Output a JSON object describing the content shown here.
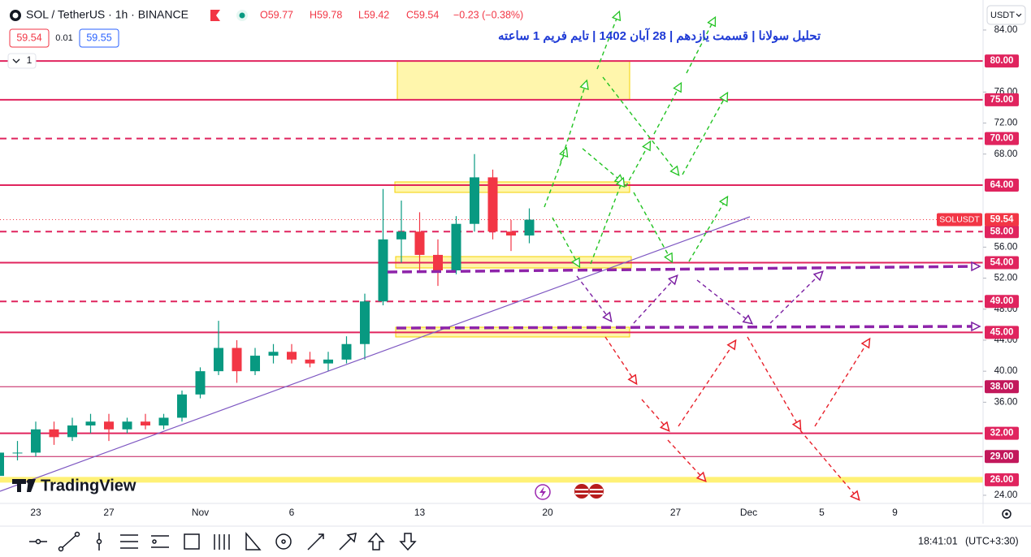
{
  "chart_data": {
    "type": "candlestick",
    "symbol": "SOL / TetherUS · 1h · BINANCE",
    "legend_values": [
      "O59.77",
      "H59.78",
      "L59.42",
      "C59.54",
      "−0.23 (−0.38%)"
    ],
    "bid": "59.54",
    "spread": "0.01",
    "ask": "59.55",
    "title": "تحلیل سولانا | قسمت یازدهم | 28 آبان 1402 | تایم فریم 1 ساعته",
    "indicator_count": "1",
    "currency": "USDT",
    "watermark": "TradingView",
    "clock": "18:41:01",
    "timezone": "(UTC+3:30)",
    "up_color": "#089981",
    "down_color": "#f23645",
    "categories": [
      null,
      null,
      "23",
      null,
      null,
      null,
      "27",
      null,
      null,
      null,
      null,
      "Nov",
      null,
      null,
      null,
      null,
      "6",
      null,
      null,
      null,
      null,
      null,
      null,
      "13",
      null,
      null,
      null,
      null,
      null,
      null,
      "20",
      null,
      null,
      null,
      null,
      null,
      null,
      "27",
      null,
      null,
      null,
      "Dec",
      null,
      null,
      null,
      "5",
      null,
      null,
      null,
      "9",
      null,
      null,
      null
    ],
    "open": [
      26.5,
      29.5,
      29.5,
      32.5,
      31.5,
      33,
      33.5,
      32.5,
      33.5,
      33,
      34,
      37,
      40,
      43,
      40,
      42,
      42.5,
      41.5,
      41,
      41.5,
      43.5,
      49,
      57,
      58,
      55,
      53,
      59,
      65,
      58,
      57.5,
      null,
      null,
      null,
      null,
      null,
      null,
      null,
      null,
      null,
      null,
      null,
      null,
      null,
      null,
      null,
      null,
      null,
      null,
      null,
      null,
      null,
      null,
      null
    ],
    "high": [
      30,
      31,
      33.5,
      33.5,
      34,
      34.5,
      34.5,
      34,
      34.5,
      34.5,
      37.5,
      40.5,
      46.5,
      44,
      43,
      43.5,
      43.5,
      42.5,
      42.5,
      44.5,
      50,
      63.5,
      62,
      60.5,
      57,
      60,
      68,
      66,
      59.5,
      61,
      null,
      null,
      null,
      null,
      null,
      null,
      null,
      null,
      null,
      null,
      null,
      null,
      null,
      null,
      null,
      null,
      null,
      null,
      null,
      null,
      null,
      null,
      null
    ],
    "low": [
      26,
      28.5,
      29,
      30.5,
      31,
      32,
      31,
      32,
      32.5,
      32.5,
      33.5,
      36.5,
      39.5,
      38.5,
      39.5,
      41,
      41,
      40.5,
      40,
      41,
      41.5,
      48.5,
      54,
      53,
      51,
      52.5,
      58,
      57,
      55.5,
      56.5,
      null,
      null,
      null,
      null,
      null,
      null,
      null,
      null,
      null,
      null,
      null,
      null,
      null,
      null,
      null,
      null,
      null,
      null,
      null,
      null,
      null,
      null,
      null
    ],
    "close": [
      29.5,
      29.5,
      32.5,
      31.5,
      33,
      33.5,
      32.5,
      33.5,
      33,
      34,
      37,
      40,
      43,
      40,
      42,
      42.5,
      41.5,
      41,
      41.5,
      43.5,
      49,
      57,
      58,
      55,
      53,
      59,
      65,
      58,
      57.5,
      59.54,
      null,
      null,
      null,
      null,
      null,
      null,
      null,
      null,
      null,
      null,
      null,
      null,
      null,
      null,
      null,
      null,
      null,
      null,
      null,
      null,
      null,
      null,
      null
    ],
    "ylim": [
      22.95,
      87.87
    ],
    "yticks": [
      {
        "value": 84,
        "label": "84.00"
      },
      {
        "value": 76,
        "label": "76.00"
      },
      {
        "value": 72,
        "label": "72.00"
      },
      {
        "value": 68,
        "label": "68.00"
      },
      {
        "value": 56,
        "label": "56.00"
      },
      {
        "value": 52,
        "label": "52.00"
      },
      {
        "value": 48,
        "label": "48.00"
      },
      {
        "value": 44,
        "label": "44.00"
      },
      {
        "value": 40,
        "label": "40.00"
      },
      {
        "value": 36,
        "label": "36.00"
      },
      {
        "value": 24,
        "label": "24.00"
      }
    ],
    "levels": [
      {
        "value": 80,
        "label": "80.00",
        "style": "solid",
        "color": "#e0245e"
      },
      {
        "value": 75,
        "label": "75.00",
        "style": "solid",
        "color": "#e0245e"
      },
      {
        "value": 70,
        "label": "70.00",
        "style": "dashed",
        "color": "#e0245e"
      },
      {
        "value": 64,
        "label": "64.00",
        "style": "solid",
        "color": "#e0245e"
      },
      {
        "value": 58,
        "label": "58.00",
        "style": "dashed",
        "color": "#e0245e"
      },
      {
        "value": 54,
        "label": "54.00",
        "style": "solid",
        "color": "#e0245e"
      },
      {
        "value": 49,
        "label": "49.00",
        "style": "dashed",
        "color": "#e0245e"
      },
      {
        "value": 45,
        "label": "45.00",
        "style": "solid",
        "color": "#e0245e"
      },
      {
        "value": 38,
        "label": "38.00",
        "style": "thin",
        "color": "#c2185b"
      },
      {
        "value": 32,
        "label": "32.00",
        "style": "solid",
        "color": "#e0245e"
      },
      {
        "value": 29,
        "label": "29.00",
        "style": "thin",
        "color": "#c2185b"
      },
      {
        "value": 26,
        "label": "26.00",
        "style": "band",
        "color": "#fff176"
      }
    ],
    "last_price": {
      "value": 59.54,
      "label": "59.54",
      "name": "SOLUSDT",
      "color": "#f23645"
    }
  }
}
